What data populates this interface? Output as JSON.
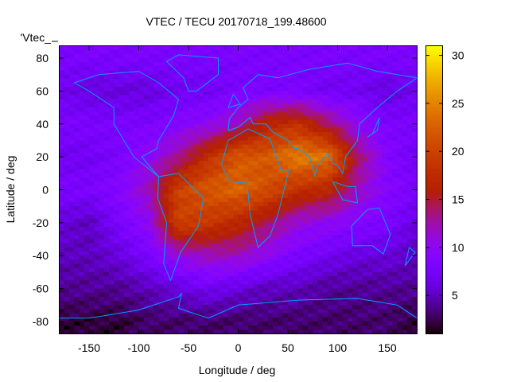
{
  "chart_data": {
    "type": "heatmap",
    "title": "VTEC / TECU 20170718_199.48600",
    "xlabel": "Longitude / deg",
    "ylabel": "Latitude / deg",
    "key_label": "'Vtec_",
    "xlim": [
      -180,
      180
    ],
    "ylim": [
      -87.5,
      87.5
    ],
    "xticks": [
      -150,
      -100,
      -50,
      0,
      50,
      100,
      150
    ],
    "yticks": [
      -80,
      -60,
      -40,
      -20,
      0,
      20,
      40,
      60,
      80
    ],
    "colorbar": {
      "range": [
        1,
        31
      ],
      "ticks": [
        5,
        10,
        15,
        20,
        25,
        30
      ],
      "palette": "black-purple-red-yellow"
    },
    "grid": false,
    "grid_lon": [
      -180,
      -150,
      -120,
      -90,
      -60,
      -30,
      0,
      30,
      60,
      90,
      120,
      150,
      180
    ],
    "grid_lat": [
      80,
      60,
      40,
      20,
      0,
      -20,
      -40,
      -60,
      -80
    ],
    "values": [
      [
        8,
        8,
        8,
        8,
        8,
        8,
        8,
        8,
        8,
        8,
        8,
        8,
        8
      ],
      [
        7,
        6,
        6,
        6,
        7,
        7,
        8,
        8,
        8,
        7,
        7,
        6,
        7
      ],
      [
        8,
        8,
        8,
        8,
        9,
        10,
        12,
        17,
        18,
        14,
        10,
        8,
        8
      ],
      [
        7,
        7,
        8,
        10,
        13,
        18,
        22,
        22,
        25,
        24,
        14,
        9,
        7
      ],
      [
        8,
        8,
        9,
        12,
        20,
        22,
        23,
        21,
        18,
        17,
        12,
        9,
        8
      ],
      [
        6,
        5,
        8,
        10,
        20,
        19,
        17,
        14,
        11,
        10,
        9,
        8,
        6
      ],
      [
        5,
        5,
        6,
        8,
        11,
        12,
        12,
        10,
        8,
        7,
        6,
        6,
        5
      ],
      [
        4,
        4,
        4,
        5,
        6,
        7,
        6,
        5,
        5,
        4,
        4,
        4,
        4
      ],
      [
        2,
        2,
        2,
        3,
        3,
        3,
        3,
        3,
        3,
        3,
        3,
        3,
        2
      ]
    ]
  }
}
